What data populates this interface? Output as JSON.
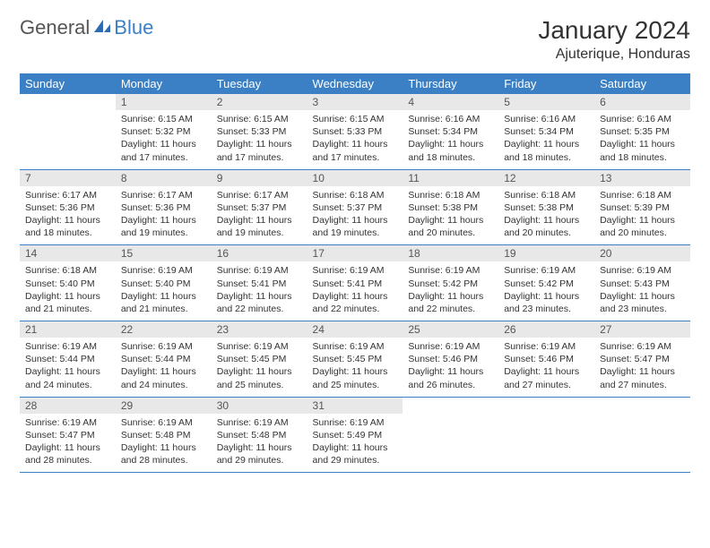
{
  "logo": {
    "part1": "General",
    "part2": "Blue"
  },
  "title": "January 2024",
  "location": "Ajuterique, Honduras",
  "colors": {
    "header_bg": "#3b7fc4",
    "header_text": "#ffffff",
    "daynum_bg": "#e8e8e8",
    "divider": "#3b7fc4",
    "logo_gray": "#555555",
    "logo_blue": "#3b7fc4"
  },
  "weekdays": [
    "Sunday",
    "Monday",
    "Tuesday",
    "Wednesday",
    "Thursday",
    "Friday",
    "Saturday"
  ],
  "weeks": [
    [
      {
        "n": "",
        "sr": "",
        "ss": "",
        "dl1": "",
        "dl2": ""
      },
      {
        "n": "1",
        "sr": "Sunrise: 6:15 AM",
        "ss": "Sunset: 5:32 PM",
        "dl1": "Daylight: 11 hours",
        "dl2": "and 17 minutes."
      },
      {
        "n": "2",
        "sr": "Sunrise: 6:15 AM",
        "ss": "Sunset: 5:33 PM",
        "dl1": "Daylight: 11 hours",
        "dl2": "and 17 minutes."
      },
      {
        "n": "3",
        "sr": "Sunrise: 6:15 AM",
        "ss": "Sunset: 5:33 PM",
        "dl1": "Daylight: 11 hours",
        "dl2": "and 17 minutes."
      },
      {
        "n": "4",
        "sr": "Sunrise: 6:16 AM",
        "ss": "Sunset: 5:34 PM",
        "dl1": "Daylight: 11 hours",
        "dl2": "and 18 minutes."
      },
      {
        "n": "5",
        "sr": "Sunrise: 6:16 AM",
        "ss": "Sunset: 5:34 PM",
        "dl1": "Daylight: 11 hours",
        "dl2": "and 18 minutes."
      },
      {
        "n": "6",
        "sr": "Sunrise: 6:16 AM",
        "ss": "Sunset: 5:35 PM",
        "dl1": "Daylight: 11 hours",
        "dl2": "and 18 minutes."
      }
    ],
    [
      {
        "n": "7",
        "sr": "Sunrise: 6:17 AM",
        "ss": "Sunset: 5:36 PM",
        "dl1": "Daylight: 11 hours",
        "dl2": "and 18 minutes."
      },
      {
        "n": "8",
        "sr": "Sunrise: 6:17 AM",
        "ss": "Sunset: 5:36 PM",
        "dl1": "Daylight: 11 hours",
        "dl2": "and 19 minutes."
      },
      {
        "n": "9",
        "sr": "Sunrise: 6:17 AM",
        "ss": "Sunset: 5:37 PM",
        "dl1": "Daylight: 11 hours",
        "dl2": "and 19 minutes."
      },
      {
        "n": "10",
        "sr": "Sunrise: 6:18 AM",
        "ss": "Sunset: 5:37 PM",
        "dl1": "Daylight: 11 hours",
        "dl2": "and 19 minutes."
      },
      {
        "n": "11",
        "sr": "Sunrise: 6:18 AM",
        "ss": "Sunset: 5:38 PM",
        "dl1": "Daylight: 11 hours",
        "dl2": "and 20 minutes."
      },
      {
        "n": "12",
        "sr": "Sunrise: 6:18 AM",
        "ss": "Sunset: 5:38 PM",
        "dl1": "Daylight: 11 hours",
        "dl2": "and 20 minutes."
      },
      {
        "n": "13",
        "sr": "Sunrise: 6:18 AM",
        "ss": "Sunset: 5:39 PM",
        "dl1": "Daylight: 11 hours",
        "dl2": "and 20 minutes."
      }
    ],
    [
      {
        "n": "14",
        "sr": "Sunrise: 6:18 AM",
        "ss": "Sunset: 5:40 PM",
        "dl1": "Daylight: 11 hours",
        "dl2": "and 21 minutes."
      },
      {
        "n": "15",
        "sr": "Sunrise: 6:19 AM",
        "ss": "Sunset: 5:40 PM",
        "dl1": "Daylight: 11 hours",
        "dl2": "and 21 minutes."
      },
      {
        "n": "16",
        "sr": "Sunrise: 6:19 AM",
        "ss": "Sunset: 5:41 PM",
        "dl1": "Daylight: 11 hours",
        "dl2": "and 22 minutes."
      },
      {
        "n": "17",
        "sr": "Sunrise: 6:19 AM",
        "ss": "Sunset: 5:41 PM",
        "dl1": "Daylight: 11 hours",
        "dl2": "and 22 minutes."
      },
      {
        "n": "18",
        "sr": "Sunrise: 6:19 AM",
        "ss": "Sunset: 5:42 PM",
        "dl1": "Daylight: 11 hours",
        "dl2": "and 22 minutes."
      },
      {
        "n": "19",
        "sr": "Sunrise: 6:19 AM",
        "ss": "Sunset: 5:42 PM",
        "dl1": "Daylight: 11 hours",
        "dl2": "and 23 minutes."
      },
      {
        "n": "20",
        "sr": "Sunrise: 6:19 AM",
        "ss": "Sunset: 5:43 PM",
        "dl1": "Daylight: 11 hours",
        "dl2": "and 23 minutes."
      }
    ],
    [
      {
        "n": "21",
        "sr": "Sunrise: 6:19 AM",
        "ss": "Sunset: 5:44 PM",
        "dl1": "Daylight: 11 hours",
        "dl2": "and 24 minutes."
      },
      {
        "n": "22",
        "sr": "Sunrise: 6:19 AM",
        "ss": "Sunset: 5:44 PM",
        "dl1": "Daylight: 11 hours",
        "dl2": "and 24 minutes."
      },
      {
        "n": "23",
        "sr": "Sunrise: 6:19 AM",
        "ss": "Sunset: 5:45 PM",
        "dl1": "Daylight: 11 hours",
        "dl2": "and 25 minutes."
      },
      {
        "n": "24",
        "sr": "Sunrise: 6:19 AM",
        "ss": "Sunset: 5:45 PM",
        "dl1": "Daylight: 11 hours",
        "dl2": "and 25 minutes."
      },
      {
        "n": "25",
        "sr": "Sunrise: 6:19 AM",
        "ss": "Sunset: 5:46 PM",
        "dl1": "Daylight: 11 hours",
        "dl2": "and 26 minutes."
      },
      {
        "n": "26",
        "sr": "Sunrise: 6:19 AM",
        "ss": "Sunset: 5:46 PM",
        "dl1": "Daylight: 11 hours",
        "dl2": "and 27 minutes."
      },
      {
        "n": "27",
        "sr": "Sunrise: 6:19 AM",
        "ss": "Sunset: 5:47 PM",
        "dl1": "Daylight: 11 hours",
        "dl2": "and 27 minutes."
      }
    ],
    [
      {
        "n": "28",
        "sr": "Sunrise: 6:19 AM",
        "ss": "Sunset: 5:47 PM",
        "dl1": "Daylight: 11 hours",
        "dl2": "and 28 minutes."
      },
      {
        "n": "29",
        "sr": "Sunrise: 6:19 AM",
        "ss": "Sunset: 5:48 PM",
        "dl1": "Daylight: 11 hours",
        "dl2": "and 28 minutes."
      },
      {
        "n": "30",
        "sr": "Sunrise: 6:19 AM",
        "ss": "Sunset: 5:48 PM",
        "dl1": "Daylight: 11 hours",
        "dl2": "and 29 minutes."
      },
      {
        "n": "31",
        "sr": "Sunrise: 6:19 AM",
        "ss": "Sunset: 5:49 PM",
        "dl1": "Daylight: 11 hours",
        "dl2": "and 29 minutes."
      },
      {
        "n": "",
        "sr": "",
        "ss": "",
        "dl1": "",
        "dl2": ""
      },
      {
        "n": "",
        "sr": "",
        "ss": "",
        "dl1": "",
        "dl2": ""
      },
      {
        "n": "",
        "sr": "",
        "ss": "",
        "dl1": "",
        "dl2": ""
      }
    ]
  ]
}
